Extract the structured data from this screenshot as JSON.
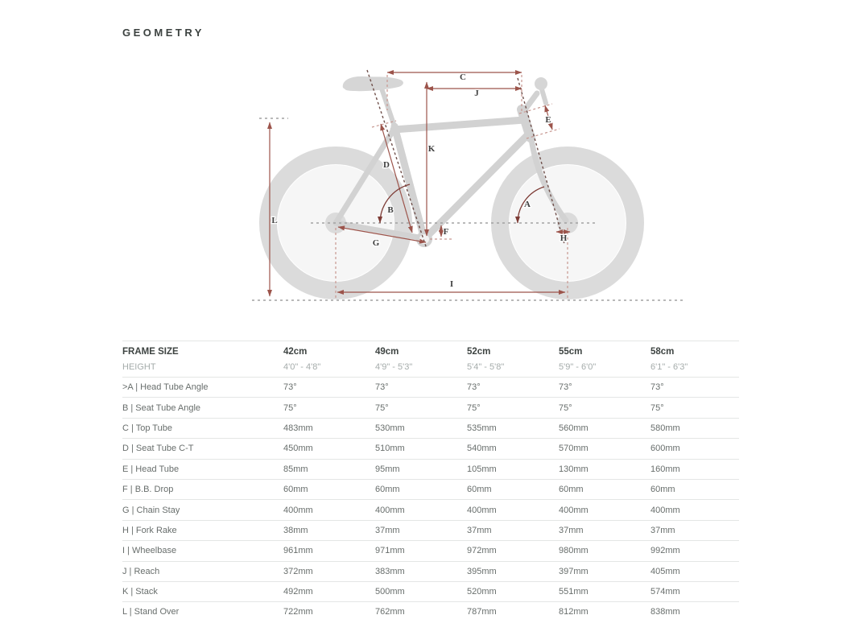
{
  "page": {
    "title": "GEOMETRY"
  },
  "diagram": {
    "description": "bicycle-geometry-diagram",
    "labels": {
      "A": "A",
      "B": "B",
      "C": "C",
      "D": "D",
      "E": "E",
      "F": "F",
      "G": "G",
      "H": "H",
      "I": "I",
      "J": "J",
      "K": "K",
      "L": "L"
    },
    "colors": {
      "silhouette": "#d6d6d6",
      "dimension_line": "#9c544b",
      "dimension_dashed": "#c79790",
      "angle_arc": "#7d3b35",
      "guide_dashed": "#a2a2a2",
      "axis_dashed": "#6f4f4a",
      "label_text": "#3e3e3e"
    }
  },
  "table": {
    "header": {
      "label": "FRAME SIZE",
      "columns": [
        "42cm",
        "49cm",
        "52cm",
        "55cm",
        "58cm"
      ]
    },
    "height_row": {
      "label": "HEIGHT",
      "values": [
        "4'0\" - 4'8\"",
        "4'9\" - 5'3\"",
        "5'4\" - 5'8\"",
        "5'9\" - 6'0\"",
        "6'1\" - 6'3\""
      ]
    },
    "rows": [
      {
        "label": ">A | Head Tube Angle",
        "values": [
          "73°",
          "73°",
          "73°",
          "73°",
          "73°"
        ]
      },
      {
        "label": "B | Seat Tube Angle",
        "values": [
          "75°",
          "75°",
          "75°",
          "75°",
          "75°"
        ]
      },
      {
        "label": "C | Top Tube",
        "values": [
          "483mm",
          "530mm",
          "535mm",
          "560mm",
          "580mm"
        ]
      },
      {
        "label": "D | Seat Tube C-T",
        "values": [
          "450mm",
          "510mm",
          "540mm",
          "570mm",
          "600mm"
        ]
      },
      {
        "label": "E | Head Tube",
        "values": [
          "85mm",
          "95mm",
          "105mm",
          "130mm",
          "160mm"
        ]
      },
      {
        "label": "F | B.B. Drop",
        "values": [
          "60mm",
          "60mm",
          "60mm",
          "60mm",
          "60mm"
        ]
      },
      {
        "label": "G | Chain Stay",
        "values": [
          "400mm",
          "400mm",
          "400mm",
          "400mm",
          "400mm"
        ]
      },
      {
        "label": "H | Fork Rake",
        "values": [
          "38mm",
          "37mm",
          "37mm",
          "37mm",
          "37mm"
        ]
      },
      {
        "label": "I | Wheelbase",
        "values": [
          "961mm",
          "971mm",
          "972mm",
          "980mm",
          "992mm"
        ]
      },
      {
        "label": "J | Reach",
        "values": [
          "372mm",
          "383mm",
          "395mm",
          "397mm",
          "405mm"
        ]
      },
      {
        "label": "K | Stack",
        "values": [
          "492mm",
          "500mm",
          "520mm",
          "551mm",
          "574mm"
        ]
      },
      {
        "label": "L | Stand Over",
        "values": [
          "722mm",
          "762mm",
          "787mm",
          "812mm",
          "838mm"
        ]
      }
    ]
  }
}
